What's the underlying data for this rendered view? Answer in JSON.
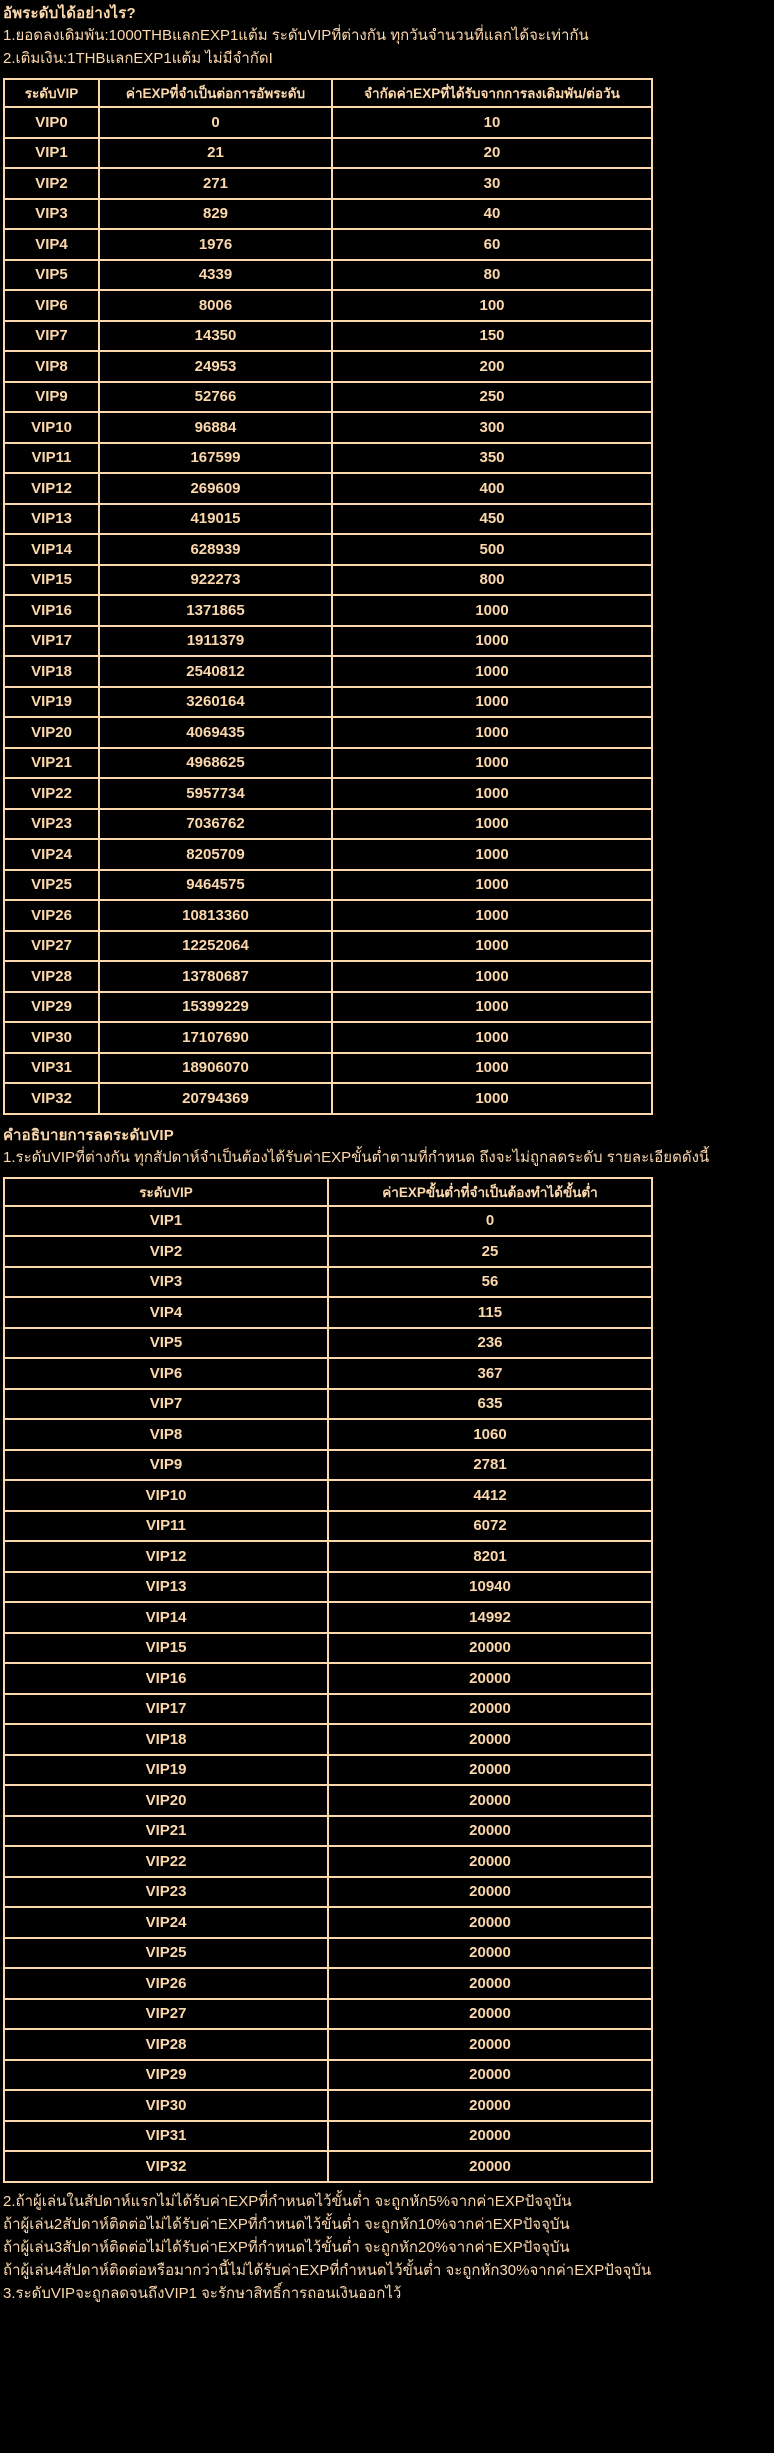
{
  "colors": {
    "background": "#000000",
    "text": "#fcd8ac",
    "table_border": "#fcd8ac"
  },
  "intro": {
    "title": "อัพระดับได้อย่างไร?",
    "lines": [
      "1.ยอดลงเดิมพัน:1000THBแลกEXP1แต้ม ระดับVIPที่ต่างกัน ทุกวันจำนวนที่แลกได้จะเท่ากัน",
      "2.เติมเงิน:1THBแลกEXP1แต้ม ไม่มีจำกัดI"
    ]
  },
  "level_up_table": {
    "headers": [
      "ระดับVIP",
      "ค่าEXPที่จำเป็นต่อการอัพระดับ",
      "จำกัดค่าEXPที่ได้รับจากการลงเดิมพัน/ต่อวัน"
    ],
    "rows": [
      [
        "VIP0",
        "0",
        "10"
      ],
      [
        "VIP1",
        "21",
        "20"
      ],
      [
        "VIP2",
        "271",
        "30"
      ],
      [
        "VIP3",
        "829",
        "40"
      ],
      [
        "VIP4",
        "1976",
        "60"
      ],
      [
        "VIP5",
        "4339",
        "80"
      ],
      [
        "VIP6",
        "8006",
        "100"
      ],
      [
        "VIP7",
        "14350",
        "150"
      ],
      [
        "VIP8",
        "24953",
        "200"
      ],
      [
        "VIP9",
        "52766",
        "250"
      ],
      [
        "VIP10",
        "96884",
        "300"
      ],
      [
        "VIP11",
        "167599",
        "350"
      ],
      [
        "VIP12",
        "269609",
        "400"
      ],
      [
        "VIP13",
        "419015",
        "450"
      ],
      [
        "VIP14",
        "628939",
        "500"
      ],
      [
        "VIP15",
        "922273",
        "800"
      ],
      [
        "VIP16",
        "1371865",
        "1000"
      ],
      [
        "VIP17",
        "1911379",
        "1000"
      ],
      [
        "VIP18",
        "2540812",
        "1000"
      ],
      [
        "VIP19",
        "3260164",
        "1000"
      ],
      [
        "VIP20",
        "4069435",
        "1000"
      ],
      [
        "VIP21",
        "4968625",
        "1000"
      ],
      [
        "VIP22",
        "5957734",
        "1000"
      ],
      [
        "VIP23",
        "7036762",
        "1000"
      ],
      [
        "VIP24",
        "8205709",
        "1000"
      ],
      [
        "VIP25",
        "9464575",
        "1000"
      ],
      [
        "VIP26",
        "10813360",
        "1000"
      ],
      [
        "VIP27",
        "12252064",
        "1000"
      ],
      [
        "VIP28",
        "13780687",
        "1000"
      ],
      [
        "VIP29",
        "15399229",
        "1000"
      ],
      [
        "VIP30",
        "17107690",
        "1000"
      ],
      [
        "VIP31",
        "18906070",
        "1000"
      ],
      [
        "VIP32",
        "20794369",
        "1000"
      ]
    ]
  },
  "demotion": {
    "title": "คำอธิบายการลดระดับVIP",
    "line": "1.ระดับVIPที่ต่างกัน ทุกสัปดาห์จำเป็นต้องได้รับค่าEXPขั้นต่ำตามที่กำหนด ถึงจะไม่ถูกลดระดับ รายละเอียดดังนี้"
  },
  "demotion_table": {
    "headers": [
      "ระดับVIP",
      "ค่าEXPขั้นต่ำที่จำเป็นต้องทำได้ขั้นต่ำ"
    ],
    "rows": [
      [
        "VIP1",
        "0"
      ],
      [
        "VIP2",
        "25"
      ],
      [
        "VIP3",
        "56"
      ],
      [
        "VIP4",
        "115"
      ],
      [
        "VIP5",
        "236"
      ],
      [
        "VIP6",
        "367"
      ],
      [
        "VIP7",
        "635"
      ],
      [
        "VIP8",
        "1060"
      ],
      [
        "VIP9",
        "2781"
      ],
      [
        "VIP10",
        "4412"
      ],
      [
        "VIP11",
        "6072"
      ],
      [
        "VIP12",
        "8201"
      ],
      [
        "VIP13",
        "10940"
      ],
      [
        "VIP14",
        "14992"
      ],
      [
        "VIP15",
        "20000"
      ],
      [
        "VIP16",
        "20000"
      ],
      [
        "VIP17",
        "20000"
      ],
      [
        "VIP18",
        "20000"
      ],
      [
        "VIP19",
        "20000"
      ],
      [
        "VIP20",
        "20000"
      ],
      [
        "VIP21",
        "20000"
      ],
      [
        "VIP22",
        "20000"
      ],
      [
        "VIP23",
        "20000"
      ],
      [
        "VIP24",
        "20000"
      ],
      [
        "VIP25",
        "20000"
      ],
      [
        "VIP26",
        "20000"
      ],
      [
        "VIP27",
        "20000"
      ],
      [
        "VIP28",
        "20000"
      ],
      [
        "VIP29",
        "20000"
      ],
      [
        "VIP30",
        "20000"
      ],
      [
        "VIP31",
        "20000"
      ],
      [
        "VIP32",
        "20000"
      ]
    ]
  },
  "footer": {
    "lines": [
      "2.ถ้าผู้เล่นในสัปดาห์แรกไม่ได้รับค่าEXPที่กำหนดไว้ขั้นต่ำ จะถูกหัก5%จากค่าEXPปัจจุบัน",
      "ถ้าผู้เล่น2สัปดาห์ติดต่อไม่ได้รับค่าEXPที่กำหนดไว้ขั้นต่ำ จะถูกหัก10%จากค่าEXPปัจจุบัน",
      "ถ้าผู้เล่น3สัปดาห์ติดต่อไม่ได้รับค่าEXPที่กำหนดไว้ขั้นต่ำ จะถูกหัก20%จากค่าEXPปัจจุบัน",
      "ถ้าผู้เล่น4สัปดาห์ติดต่อหรือมากว่านี้ไม่ได้รับค่าEXPที่กำหนดไว้ขั้นต่ำ จะถูกหัก30%จากค่าEXPปัจจุบัน",
      "3.ระดับVIPจะถูกลดจนถึงVIP1 จะรักษาสิทธิ์การถอนเงินออกไว้"
    ]
  }
}
